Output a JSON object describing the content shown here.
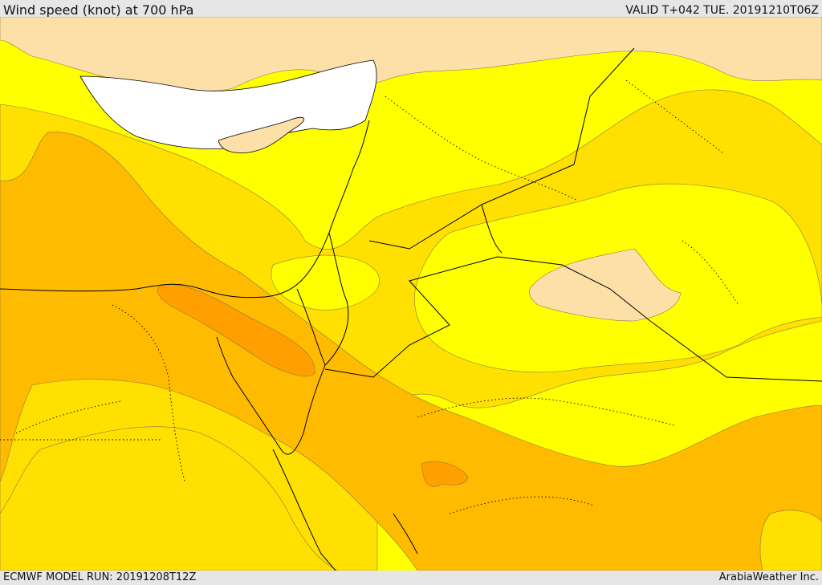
{
  "header": {
    "title": "Wind speed (knot) at 700 hPa",
    "valid": "VALID T+042 TUE. 20191210T06Z"
  },
  "footer": {
    "model_run": "ECMWF MODEL RUN: 20191208T12Z",
    "credit": "ArabiaWeather Inc."
  },
  "colors": {
    "sea_no_data": "#ffffff",
    "band_lowest": "#fde0a8",
    "band_low": "#ffff00",
    "band_mid": "#ffe000",
    "band_high": "#ffbb00",
    "band_higher": "#ffa000",
    "band_highest": "#f78a10",
    "border": "#000000"
  }
}
